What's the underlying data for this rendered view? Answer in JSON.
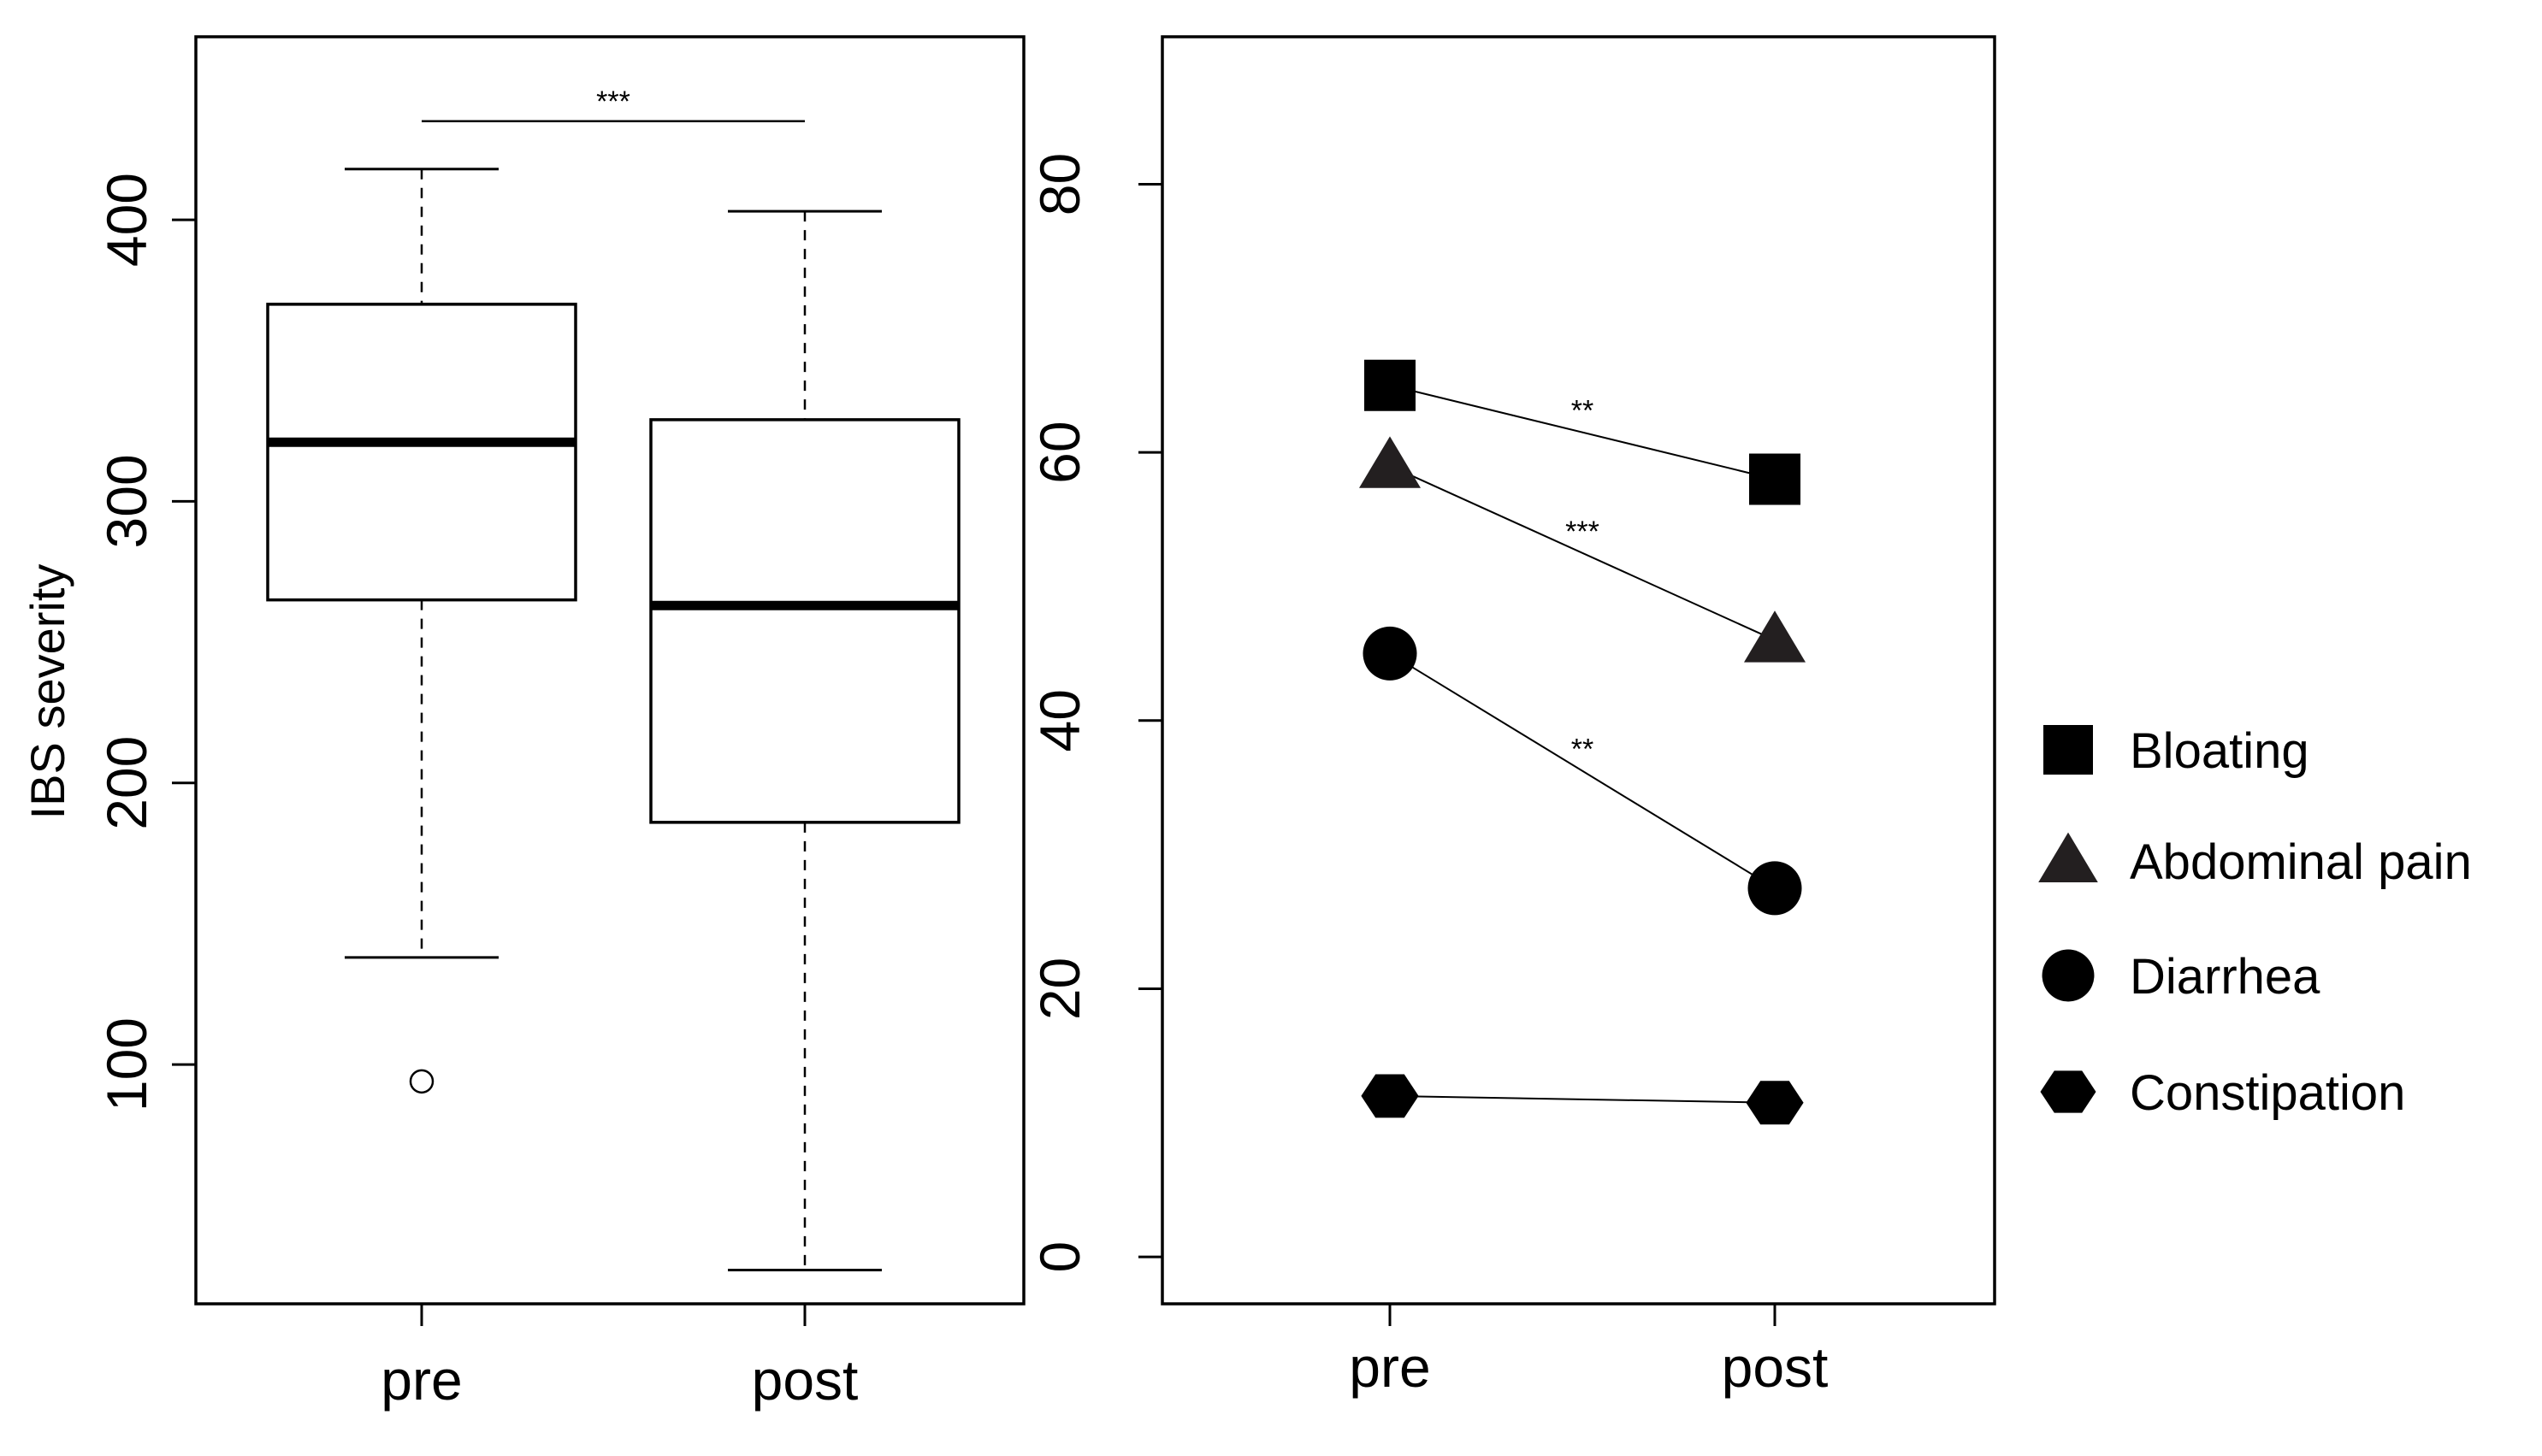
{
  "chart_data": [
    {
      "type": "boxplot",
      "ylabel": "IBS severity",
      "categories": [
        "pre",
        "post"
      ],
      "y_ticks": [
        "100",
        "200",
        "300",
        "400"
      ],
      "ylim": [
        15,
        465
      ],
      "grid": false,
      "boxes": [
        {
          "category": "pre",
          "whisker_low": 138,
          "q1": 265,
          "median": 321,
          "q3": 370,
          "whisker_high": 418,
          "outliers": [
            94
          ]
        },
        {
          "category": "post",
          "whisker_low": 27,
          "q1": 186,
          "median": 263,
          "q3": 329,
          "whisker_high": 403,
          "outliers": []
        }
      ],
      "annotations": [
        {
          "text": "***",
          "between": [
            "pre",
            "post"
          ],
          "y": 435
        }
      ]
    },
    {
      "type": "line",
      "x": [
        "pre",
        "post"
      ],
      "y_ticks": [
        "0",
        "20",
        "40",
        "60",
        "80"
      ],
      "ylim": [
        -3.5,
        91
      ],
      "grid": false,
      "legend_position": "right",
      "series": [
        {
          "name": "Bloating",
          "marker": "square",
          "values": [
            65,
            58
          ]
        },
        {
          "name": "Abdominal pain",
          "marker": "triangle",
          "values": [
            59,
            46
          ]
        },
        {
          "name": "Diarrhea",
          "marker": "circle",
          "values": [
            45,
            27.5
          ]
        },
        {
          "name": "Constipation",
          "marker": "hexagon",
          "values": [
            12,
            11.5
          ]
        }
      ],
      "annotations": [
        {
          "text": "**",
          "series": "Bloating"
        },
        {
          "text": "***",
          "series": "Abdominal pain"
        },
        {
          "text": "**",
          "series": "Diarrhea"
        }
      ]
    }
  ]
}
